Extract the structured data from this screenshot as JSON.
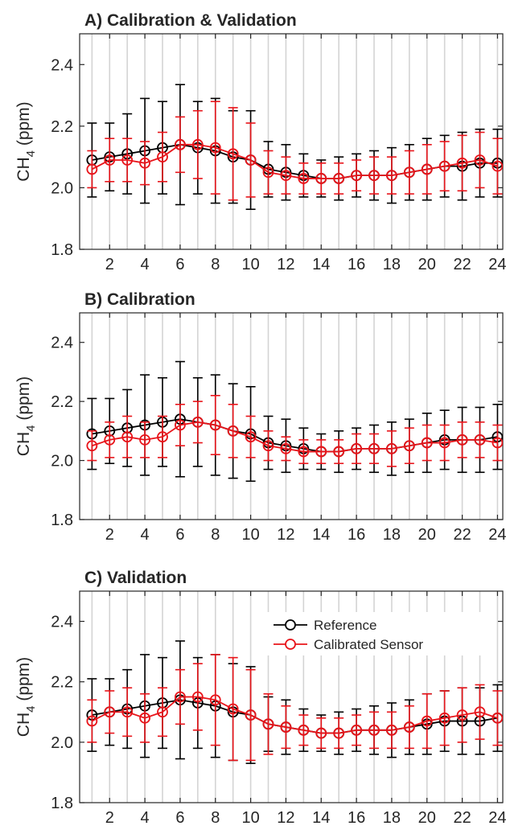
{
  "chart_data": [
    {
      "type": "line",
      "title": "A) Calibration & Validation",
      "ylabel": "CH4 (ppm)",
      "ylabel_parts": {
        "base": "CH",
        "subscript": "4",
        "unit": " (ppm)"
      },
      "x": [
        1,
        2,
        3,
        4,
        5,
        6,
        7,
        8,
        9,
        10,
        11,
        12,
        13,
        14,
        15,
        16,
        17,
        18,
        19,
        20,
        21,
        22,
        23,
        24
      ],
      "xticks": [
        2,
        4,
        6,
        8,
        10,
        12,
        14,
        16,
        18,
        20,
        22,
        24
      ],
      "xlim": [
        0.3,
        24.3
      ],
      "yticks": [
        1.8,
        2.0,
        2.2,
        2.4
      ],
      "ytick_labels": [
        "1.8",
        "2.0",
        "2.2",
        "2.4"
      ],
      "ylim": [
        1.8,
        2.5
      ],
      "vertical_grid": true,
      "series": [
        {
          "color": "#000000",
          "values": [
            2.09,
            2.1,
            2.11,
            2.12,
            2.13,
            2.14,
            2.13,
            2.12,
            2.1,
            2.09,
            2.06,
            2.05,
            2.04,
            2.03,
            2.03,
            2.04,
            2.04,
            2.04,
            2.05,
            2.06,
            2.07,
            2.07,
            2.08,
            2.08
          ],
          "errors": [
            0.12,
            0.11,
            0.13,
            0.17,
            0.15,
            0.195,
            0.15,
            0.17,
            0.15,
            0.16,
            0.09,
            0.09,
            0.07,
            0.06,
            0.07,
            0.07,
            0.08,
            0.09,
            0.09,
            0.1,
            0.1,
            0.11,
            0.11,
            0.11
          ]
        },
        {
          "color": "#e8141a",
          "values": [
            2.06,
            2.09,
            2.09,
            2.08,
            2.1,
            2.14,
            2.14,
            2.13,
            2.11,
            2.09,
            2.05,
            2.04,
            2.03,
            2.03,
            2.03,
            2.04,
            2.04,
            2.04,
            2.05,
            2.06,
            2.07,
            2.08,
            2.09,
            2.07
          ],
          "errors": [
            0.06,
            0.07,
            0.07,
            0.07,
            0.08,
            0.09,
            0.11,
            0.15,
            0.15,
            0.12,
            0.07,
            0.06,
            0.05,
            0.05,
            0.05,
            0.05,
            0.06,
            0.06,
            0.07,
            0.08,
            0.08,
            0.09,
            0.09,
            0.09
          ]
        }
      ]
    },
    {
      "type": "line",
      "title": "B) Calibration",
      "ylabel": "CH4 (ppm)",
      "ylabel_parts": {
        "base": "CH",
        "subscript": "4",
        "unit": " (ppm)"
      },
      "x": [
        1,
        2,
        3,
        4,
        5,
        6,
        7,
        8,
        9,
        10,
        11,
        12,
        13,
        14,
        15,
        16,
        17,
        18,
        19,
        20,
        21,
        22,
        23,
        24
      ],
      "xticks": [
        2,
        4,
        6,
        8,
        10,
        12,
        14,
        16,
        18,
        20,
        22,
        24
      ],
      "xlim": [
        0.3,
        24.3
      ],
      "yticks": [
        1.8,
        2.0,
        2.2,
        2.4
      ],
      "ytick_labels": [
        "1.8",
        "2.0",
        "2.2",
        "2.4"
      ],
      "ylim": [
        1.8,
        2.5
      ],
      "vertical_grid": true,
      "series": [
        {
          "color": "#000000",
          "values": [
            2.09,
            2.1,
            2.11,
            2.12,
            2.13,
            2.14,
            2.13,
            2.12,
            2.1,
            2.09,
            2.06,
            2.05,
            2.04,
            2.03,
            2.03,
            2.04,
            2.04,
            2.04,
            2.05,
            2.06,
            2.07,
            2.07,
            2.07,
            2.08
          ],
          "errors": [
            0.12,
            0.11,
            0.13,
            0.17,
            0.15,
            0.195,
            0.15,
            0.17,
            0.16,
            0.16,
            0.09,
            0.09,
            0.07,
            0.06,
            0.07,
            0.07,
            0.08,
            0.09,
            0.09,
            0.1,
            0.1,
            0.11,
            0.11,
            0.11
          ]
        },
        {
          "color": "#e8141a",
          "values": [
            2.05,
            2.07,
            2.08,
            2.07,
            2.08,
            2.12,
            2.13,
            2.12,
            2.1,
            2.08,
            2.05,
            2.04,
            2.03,
            2.03,
            2.03,
            2.04,
            2.04,
            2.04,
            2.05,
            2.06,
            2.06,
            2.07,
            2.07,
            2.06
          ],
          "errors": [
            0.05,
            0.06,
            0.07,
            0.06,
            0.07,
            0.07,
            0.07,
            0.1,
            0.09,
            0.07,
            0.05,
            0.04,
            0.04,
            0.04,
            0.04,
            0.05,
            0.05,
            0.06,
            0.06,
            0.06,
            0.06,
            0.06,
            0.06,
            0.06
          ]
        }
      ]
    },
    {
      "type": "line",
      "title": "C) Validation",
      "ylabel": "CH4 (ppm)",
      "ylabel_parts": {
        "base": "CH",
        "subscript": "4",
        "unit": " (ppm)"
      },
      "x": [
        1,
        2,
        3,
        4,
        5,
        6,
        7,
        8,
        9,
        10,
        11,
        12,
        13,
        14,
        15,
        16,
        17,
        18,
        19,
        20,
        21,
        22,
        23,
        24
      ],
      "xticks": [
        2,
        4,
        6,
        8,
        10,
        12,
        14,
        16,
        18,
        20,
        22,
        24
      ],
      "xlim": [
        0.3,
        24.3
      ],
      "yticks": [
        1.8,
        2.0,
        2.2,
        2.4
      ],
      "ytick_labels": [
        "1.8",
        "2.0",
        "2.2",
        "2.4"
      ],
      "ylim": [
        1.8,
        2.5
      ],
      "vertical_grid": true,
      "legend": {
        "placement": "top-right",
        "entries": [
          "Reference",
          "Calibrated Sensor"
        ]
      },
      "series": [
        {
          "name": "Reference",
          "color": "#000000",
          "values": [
            2.09,
            2.1,
            2.11,
            2.12,
            2.13,
            2.14,
            2.13,
            2.12,
            2.1,
            2.09,
            2.06,
            2.05,
            2.04,
            2.03,
            2.03,
            2.04,
            2.04,
            2.04,
            2.05,
            2.06,
            2.07,
            2.07,
            2.07,
            2.08
          ],
          "errors": [
            0.12,
            0.11,
            0.13,
            0.17,
            0.15,
            0.195,
            0.15,
            0.17,
            0.16,
            0.16,
            0.09,
            0.09,
            0.07,
            0.06,
            0.07,
            0.07,
            0.08,
            0.09,
            0.09,
            0.1,
            0.1,
            0.11,
            0.11,
            0.11
          ]
        },
        {
          "name": "Calibrated Sensor",
          "color": "#e8141a",
          "values": [
            2.07,
            2.1,
            2.1,
            2.08,
            2.1,
            2.15,
            2.15,
            2.14,
            2.11,
            2.09,
            2.06,
            2.05,
            2.04,
            2.03,
            2.03,
            2.04,
            2.04,
            2.04,
            2.05,
            2.07,
            2.08,
            2.09,
            2.1,
            2.08
          ],
          "errors": [
            0.07,
            0.07,
            0.08,
            0.08,
            0.08,
            0.09,
            0.11,
            0.15,
            0.17,
            0.15,
            0.1,
            0.07,
            0.05,
            0.05,
            0.05,
            0.05,
            0.06,
            0.06,
            0.07,
            0.09,
            0.09,
            0.09,
            0.09,
            0.09
          ]
        }
      ]
    }
  ]
}
